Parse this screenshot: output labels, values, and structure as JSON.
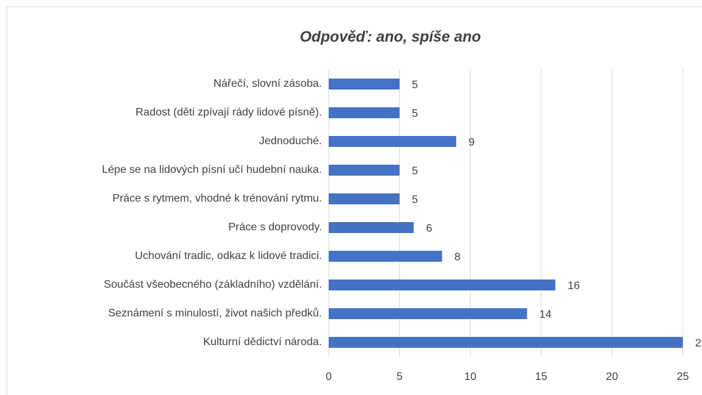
{
  "chart_data": {
    "type": "bar",
    "orientation": "horizontal",
    "title": "Odpověď: ano, spíše ano",
    "categories": [
      "Nářečí, slovní zásoba.",
      "Radost (děti zpívají rády lidové písně).",
      "Jednoduché.",
      "Lépe se na lidových písní učí hudební nauka.",
      "Práce s rytmem, vhodné k trénování rytmu.",
      "Práce s doprovody.",
      "Uchování tradic, odkaz k lidové tradici.",
      "Součást všeobecného (základního) vzdělání.",
      "Seznámení s minulostí, život našich předků.",
      "Kulturní dědictví národa."
    ],
    "values": [
      5,
      5,
      9,
      5,
      5,
      6,
      8,
      16,
      14,
      25
    ],
    "color": "#4472c4",
    "xlim": [
      0,
      25
    ],
    "xticks": [
      0,
      5,
      10,
      15,
      20,
      25
    ],
    "grid": true
  }
}
